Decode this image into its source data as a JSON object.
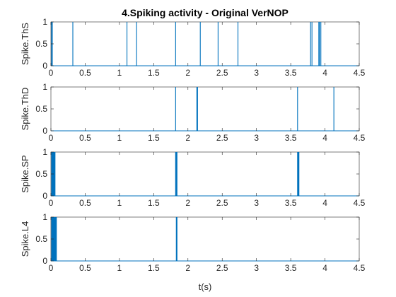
{
  "figure_title": "4.Spiking activity - Original VerNOP",
  "xlabel": "t(s)",
  "colors": {
    "spike": "#0072BD",
    "axis": "#262626",
    "background": "#ffffff"
  },
  "chart_data": [
    {
      "type": "line",
      "title": "4.Spiking activity - Original VerNOP",
      "ylabel": "Spike.ThS",
      "xlabel": "",
      "xlim": [
        0,
        4.5
      ],
      "ylim": [
        0,
        1
      ],
      "x_ticks": [
        0,
        0.5,
        1,
        1.5,
        2,
        2.5,
        3,
        3.5,
        4,
        4.5
      ],
      "x_tick_labels": [
        "0",
        "0.5",
        "1",
        "1.5",
        "2",
        "2.5",
        "3",
        "3.5",
        "4",
        "4.5"
      ],
      "y_ticks": [
        0,
        0.5,
        1
      ],
      "y_tick_labels": [
        "0",
        "0.5",
        "1"
      ],
      "spike_times": [
        0.01,
        0.02,
        0.32,
        1.11,
        1.25,
        1.82,
        2.18,
        2.44,
        2.73,
        3.79,
        3.81,
        3.91,
        3.92,
        3.94
      ]
    },
    {
      "type": "line",
      "title": "",
      "ylabel": "Spike.ThD",
      "xlabel": "",
      "xlim": [
        0,
        4.5
      ],
      "ylim": [
        0,
        1
      ],
      "x_ticks": [
        0,
        0.5,
        1,
        1.5,
        2,
        2.5,
        3,
        3.5,
        4,
        4.5
      ],
      "x_tick_labels": [
        "0",
        "0.5",
        "1",
        "1.5",
        "2",
        "2.5",
        "3",
        "3.5",
        "4",
        "4.5"
      ],
      "y_ticks": [
        0,
        0.5,
        1
      ],
      "y_tick_labels": [
        "0",
        "0.5",
        "1"
      ],
      "spike_times": [
        1.82,
        2.13,
        2.14,
        3.6,
        4.13
      ]
    },
    {
      "type": "line",
      "title": "",
      "ylabel": "Spike.SP",
      "xlabel": "",
      "xlim": [
        0,
        4.5
      ],
      "ylim": [
        0,
        1
      ],
      "x_ticks": [
        0,
        0.5,
        1,
        1.5,
        2,
        2.5,
        3,
        3.5,
        4,
        4.5
      ],
      "x_tick_labels": [
        "0",
        "0.5",
        "1",
        "1.5",
        "2",
        "2.5",
        "3",
        "3.5",
        "4",
        "4.5"
      ],
      "y_ticks": [
        0,
        0.5,
        1
      ],
      "y_tick_labels": [
        "0",
        "0.5",
        "1"
      ],
      "spike_times": [
        0.01,
        0.02,
        0.03,
        0.04,
        0.05,
        0.06,
        1.82,
        1.83,
        1.84,
        3.6,
        3.61,
        3.62
      ]
    },
    {
      "type": "line",
      "title": "",
      "ylabel": "Spike.L4",
      "xlabel": "t(s)",
      "xlim": [
        0,
        4.5
      ],
      "ylim": [
        0,
        1
      ],
      "x_ticks": [
        0,
        0.5,
        1,
        1.5,
        2,
        2.5,
        3,
        3.5,
        4,
        4.5
      ],
      "x_tick_labels": [
        "0",
        "0.5",
        "1",
        "1.5",
        "2",
        "2.5",
        "3",
        "3.5",
        "4",
        "4.5"
      ],
      "y_ticks": [
        0,
        0.5,
        1
      ],
      "y_tick_labels": [
        "0",
        "0.5",
        "1"
      ],
      "spike_times": [
        0.01,
        0.02,
        0.03,
        0.04,
        0.05,
        0.06,
        0.07,
        0.08,
        1.83,
        1.84
      ]
    }
  ]
}
